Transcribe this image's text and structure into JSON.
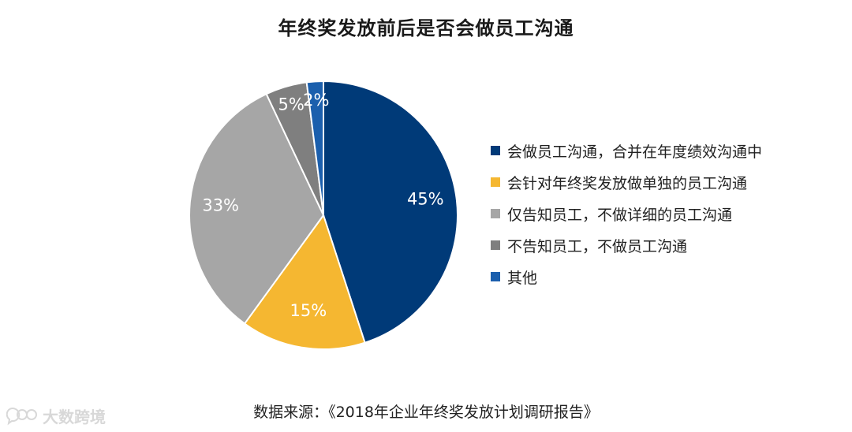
{
  "watermark": {
    "text": "大数跨境",
    "icon": "chat-bubbles-icon"
  },
  "source": "数据来源：《2018年企业年终奖发放计划调研报告》",
  "chart_data": {
    "type": "pie",
    "title": "年终奖发放前后是否会做员工沟通",
    "legend_position": "right",
    "slices": [
      {
        "label": "会做员工沟通，合并在年度绩效沟通中",
        "value": 45,
        "value_label": "45%",
        "color": "#003a78"
      },
      {
        "label": "会针对年终奖发放做单独的员工沟通",
        "value": 15,
        "value_label": "15%",
        "color": "#f5b731"
      },
      {
        "label": "仅告知员工，不做详细的员工沟通",
        "value": 33,
        "value_label": "33%",
        "color": "#a6a6a6"
      },
      {
        "label": "不告知员工，不做员工沟通",
        "value": 5,
        "value_label": "5%",
        "color": "#7f7f7f"
      },
      {
        "label": "其他",
        "value": 2,
        "value_label": "2%",
        "color": "#1b5fad"
      }
    ]
  }
}
